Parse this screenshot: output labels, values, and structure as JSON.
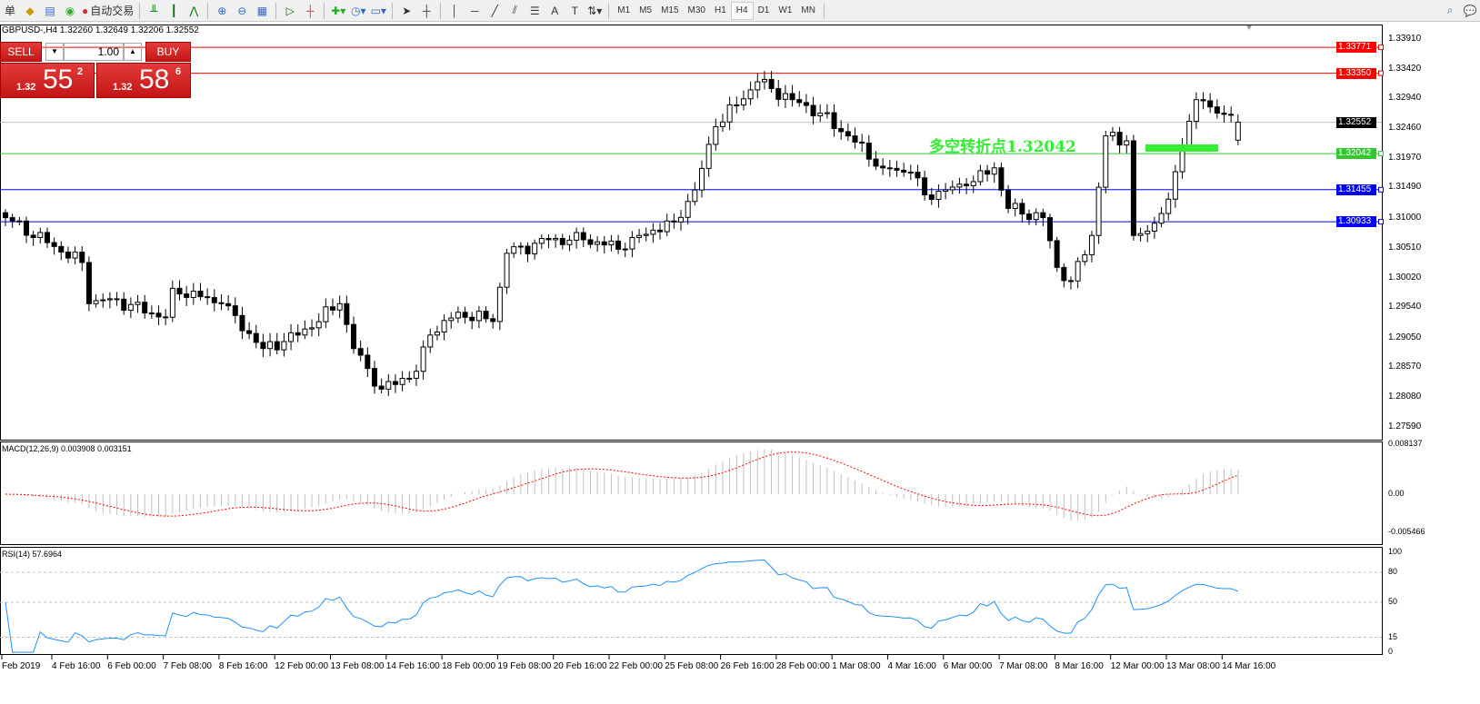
{
  "toolbar": {
    "partial_label": "单",
    "autotrade": "自动交易",
    "timeframes": [
      "M1",
      "M5",
      "M15",
      "M30",
      "H1",
      "H4",
      "D1",
      "W1",
      "MN"
    ],
    "active_timeframe": "H4"
  },
  "symbol_header": "GBPUSD-,H4  1.32260 1.32649 1.32206 1.32552",
  "trade_panel": {
    "sell": "SELL",
    "buy": "BUY",
    "lots": "1.00",
    "sell_prefix": "1.32",
    "sell_big": "55",
    "sell_sup": "2",
    "buy_prefix": "1.32",
    "buy_big": "58",
    "buy_sup": "6"
  },
  "price_axis": [
    "1.33910",
    "1.33420",
    "1.32940",
    "1.32460",
    "1.31970",
    "1.31490",
    "1.31000",
    "1.30510",
    "1.30020",
    "1.29540",
    "1.29050",
    "1.28570",
    "1.28080",
    "1.27590"
  ],
  "levels": [
    {
      "price": "1.33771",
      "color": "#ff0000"
    },
    {
      "price": "1.33350",
      "color": "#ff0000"
    },
    {
      "price": "1.32552",
      "color": "#000000",
      "line": "#c0c0c0"
    },
    {
      "price": "1.32042",
      "color": "#32c832"
    },
    {
      "price": "1.31455",
      "color": "#0000ff"
    },
    {
      "price": "1.30933",
      "color": "#0000ff"
    }
  ],
  "annotation": {
    "text": "多空转折点1.32042",
    "color": "#33ee33"
  },
  "macd": {
    "label": "MACD(12,26,9) 0.003908 0.003151",
    "axis": [
      "0.008137",
      "0.00",
      "-0.005466"
    ]
  },
  "rsi": {
    "label": "RSI(14) 57.6964",
    "axis": [
      "100",
      "80",
      "50",
      "15",
      "0"
    ]
  },
  "time_axis": [
    "Feb 2019",
    "4 Feb 16:00",
    "6 Feb 00:00",
    "7 Feb 08:00",
    "8 Feb 16:00",
    "12 Feb 00:00",
    "13 Feb 08:00",
    "14 Feb 16:00",
    "18 Feb 00:00",
    "19 Feb 08:00",
    "20 Feb 16:00",
    "22 Feb 00:00",
    "25 Feb 08:00",
    "26 Feb 16:00",
    "28 Feb 00:00",
    "1 Mar 08:00",
    "4 Mar 16:00",
    "6 Mar 00:00",
    "7 Mar 08:00",
    "8 Mar 16:00",
    "12 Mar 00:00",
    "13 Mar 08:00",
    "14 Mar 16:00"
  ],
  "chart_data": {
    "type": "candlestick",
    "symbol": "GBPUSD-",
    "timeframe": "H4",
    "ylim": [
      1.2759,
      1.3391
    ],
    "last_bar": {
      "open": 1.3226,
      "high": 1.32649,
      "low": 1.32206,
      "close": 1.32552
    },
    "approx_close_by_bar": [
      [
        0,
        1.31
      ],
      [
        7,
        1.3053
      ],
      [
        11,
        1.3027
      ],
      [
        12,
        1.296
      ],
      [
        15,
        1.2968
      ],
      [
        23,
        1.2938
      ],
      [
        24,
        1.2985
      ],
      [
        31,
        1.296
      ],
      [
        37,
        1.2887
      ],
      [
        42,
        1.2909
      ],
      [
        48,
        1.296
      ],
      [
        50,
        1.2887
      ],
      [
        54,
        1.2821
      ],
      [
        59,
        1.285
      ],
      [
        61,
        1.2909
      ],
      [
        65,
        1.2946
      ],
      [
        70,
        1.2931
      ],
      [
        72,
        1.3042
      ],
      [
        78,
        1.3064
      ],
      [
        83,
        1.3064
      ],
      [
        89,
        1.3049
      ],
      [
        91,
        1.3071
      ],
      [
        96,
        1.3093
      ],
      [
        99,
        1.3145
      ],
      [
        102,
        1.3248
      ],
      [
        108,
        1.3321
      ],
      [
        113,
        1.3292
      ],
      [
        117,
        1.327
      ],
      [
        121,
        1.3233
      ],
      [
        126,
        1.3181
      ],
      [
        130,
        1.3174
      ],
      [
        132,
        1.3137
      ],
      [
        138,
        1.3152
      ],
      [
        142,
        1.3181
      ],
      [
        144,
        1.3115
      ],
      [
        149,
        1.31
      ],
      [
        151,
        1.3019
      ],
      [
        153,
        1.2997
      ],
      [
        156,
        1.3071
      ],
      [
        158,
        1.3233
      ],
      [
        161,
        1.3225
      ],
      [
        162,
        1.3071
      ],
      [
        164,
        1.3078
      ],
      [
        167,
        1.313
      ],
      [
        169,
        1.3218
      ],
      [
        171,
        1.3292
      ],
      [
        174,
        1.327
      ],
      [
        177,
        1.32552
      ]
    ]
  }
}
